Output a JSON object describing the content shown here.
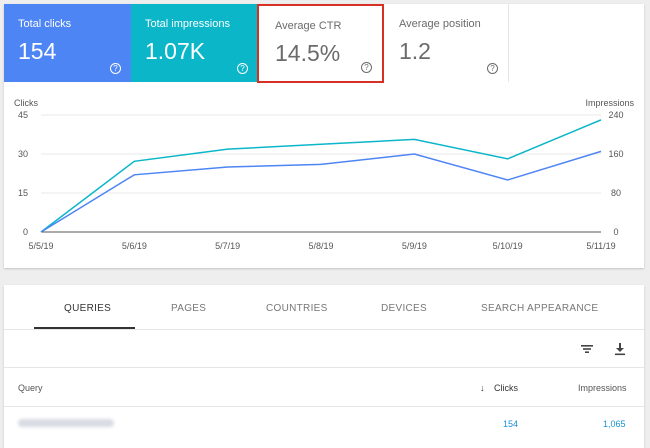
{
  "metrics": {
    "total_clicks": {
      "label": "Total clicks",
      "value": "154"
    },
    "total_impressions": {
      "label": "Total impressions",
      "value": "1.07K"
    },
    "average_ctr": {
      "label": "Average CTR",
      "value": "14.5%"
    },
    "average_position": {
      "label": "Average position",
      "value": "1.2"
    },
    "help_glyph": "?"
  },
  "chart_data": {
    "type": "line",
    "x": [
      "5/5/19",
      "5/6/19",
      "5/7/19",
      "5/8/19",
      "5/9/19",
      "5/10/19",
      "5/11/19"
    ],
    "series": [
      {
        "name": "Clicks",
        "axis": "left",
        "color": "#4e85f4",
        "values": [
          0,
          22,
          25,
          26,
          30,
          20,
          31
        ]
      },
      {
        "name": "Impressions",
        "axis": "right",
        "color": "#0bb6c9",
        "values": [
          0,
          145,
          170,
          180,
          190,
          150,
          230
        ]
      }
    ],
    "ylabel_left": "Clicks",
    "ylabel_right": "Impressions",
    "yticks_left": [
      "45",
      "30",
      "15",
      "0"
    ],
    "yticks_right": [
      "240",
      "160",
      "80",
      "0"
    ],
    "ylim_left": [
      0,
      45
    ],
    "ylim_right": [
      0,
      240
    ],
    "grid": true
  },
  "tabs": [
    "QUERIES",
    "PAGES",
    "COUNTRIES",
    "DEVICES",
    "SEARCH APPEARANCE"
  ],
  "table": {
    "headers": {
      "query": "Query",
      "clicks": "Clicks",
      "impressions": "Impressions"
    },
    "sort_indicator": "↓",
    "rows": [
      {
        "clicks": "154",
        "impressions": "1,065"
      }
    ]
  },
  "icons": {
    "filter": "filter-icon",
    "download": "download-icon"
  }
}
